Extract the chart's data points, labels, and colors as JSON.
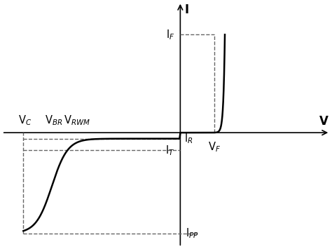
{
  "bg_color": "#ffffff",
  "curve_color": "#000000",
  "dashed_color": "#666666",
  "text_color": "#000000",
  "xlim": [
    -5.0,
    4.2
  ],
  "ylim": [
    -4.2,
    4.8
  ],
  "labels": {
    "I_axis": "I",
    "V_axis": "V",
    "VC": "V$_C$",
    "VBR": "V$_{BR}$",
    "VRWM": "V$_{RWM}$",
    "VF": "V$_F$",
    "IF": "I$_F$",
    "IR": "I$_R$",
    "IT": "I$_T$",
    "IPP": "I$_{PP}$"
  },
  "key_points": {
    "VC": -4.4,
    "VBR": -3.6,
    "VRWM": -3.0,
    "VF": 0.95,
    "IF": 3.6,
    "IR": -0.22,
    "IT": -0.65,
    "IPP": -3.7
  }
}
